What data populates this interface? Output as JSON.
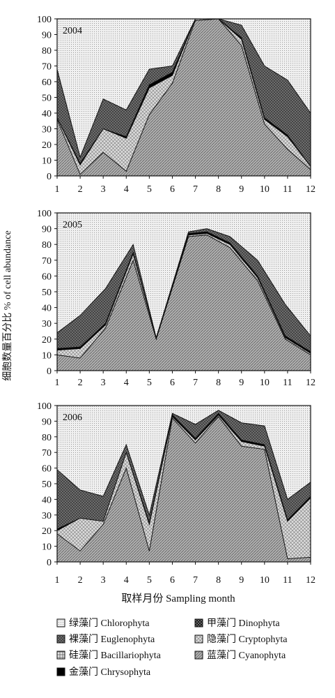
{
  "y_axis_label": "细胞数量百分比  % of cell abundance",
  "x_axis_label": "取样月份 Sampling month",
  "colors": {
    "Chlorophyta": "#ffffff",
    "Cyanophyta": "#b8b8b8",
    "Cryptophyta": "#d0d0d0",
    "Dinophyta": "#2a2a2a",
    "Chrysophyta": "#000000",
    "Bacillariophyta": "#c8c8c8",
    "Euglenophyta": "#4a4a4a"
  },
  "legend": [
    {
      "key": "Chlorophyta",
      "label": "绿藻门 Chlorophyta",
      "pattern": "hatch-chloro"
    },
    {
      "key": "Euglenophyta",
      "label": "裸藻门 Euglenophyta",
      "pattern": "hatch-eugleno"
    },
    {
      "key": "Bacillariophyta",
      "label": "硅藻门 Bacillariophyta",
      "pattern": "hatch-bacill"
    },
    {
      "key": "Chrysophyta",
      "label": "金藻门 Chrysophyta",
      "pattern": "solid-chryso"
    },
    {
      "key": "Dinophyta",
      "label": "甲藻门 Dinophyta",
      "pattern": "hatch-dino"
    },
    {
      "key": "Cryptophyta",
      "label": "隐藻门 Cryptophyta",
      "pattern": "hatch-crypto"
    },
    {
      "key": "Cyanophyta",
      "label": "蓝藻门 Cyanophyta",
      "pattern": "hatch-cyano"
    }
  ],
  "chart_data": [
    {
      "type": "area",
      "panel_label": "2004",
      "xlim": [
        1,
        12
      ],
      "ylim": [
        0,
        100
      ],
      "xticks": [
        "1",
        "2",
        "3",
        "4",
        "5",
        "6",
        "7",
        "8",
        "9",
        "10",
        "11",
        "12"
      ],
      "yticks": [
        "0",
        "10",
        "20",
        "30",
        "40",
        "50",
        "60",
        "70",
        "80",
        "90",
        "100"
      ],
      "x": [
        1,
        2,
        3,
        4,
        5,
        6,
        7,
        8,
        9,
        10,
        11,
        12
      ],
      "series": [
        {
          "name": "Cyanophyta",
          "values": [
            36,
            1,
            15,
            3,
            39,
            59,
            99,
            100,
            83,
            33,
            17,
            4
          ]
        },
        {
          "name": "Cryptophyta",
          "values": [
            1,
            6,
            15,
            21,
            17,
            5,
            1,
            1,
            4,
            3,
            8,
            2
          ]
        },
        {
          "name": "Chrysophyta",
          "values": [
            0,
            1,
            0,
            1,
            2,
            2,
            0,
            0,
            1,
            1,
            1,
            0
          ]
        },
        {
          "name": "Euglenophyta",
          "values": [
            31,
            4,
            19,
            17,
            10,
            4,
            0,
            0,
            8,
            33,
            35,
            34
          ]
        },
        {
          "name": "Chlorophyta",
          "values": [
            32,
            88,
            51,
            58,
            32,
            30,
            0,
            0,
            4,
            30,
            39,
            60
          ]
        }
      ]
    },
    {
      "type": "area",
      "panel_label": "2005",
      "xlim": [
        1,
        12
      ],
      "ylim": [
        0,
        100
      ],
      "xticks": [
        "1",
        "2",
        "3",
        "4",
        "5",
        "6",
        "7",
        "8",
        "9",
        "10",
        "11",
        "12"
      ],
      "yticks": [
        "0",
        "10",
        "20",
        "30",
        "40",
        "50",
        "60",
        "70",
        "80",
        "90",
        "100"
      ],
      "x": [
        1,
        2,
        3.1,
        4.3,
        5.3,
        6.7,
        7.5,
        8.5,
        9.7,
        10.9,
        12
      ],
      "series": [
        {
          "name": "Cyanophyta",
          "values": [
            10,
            8,
            27,
            70,
            20,
            85,
            86,
            78,
            57,
            20,
            10
          ]
        },
        {
          "name": "Cryptophyta",
          "values": [
            3,
            6,
            2,
            4,
            1,
            1,
            1,
            2,
            2,
            1,
            1
          ]
        },
        {
          "name": "Chrysophyta",
          "values": [
            1,
            1,
            1,
            1,
            0,
            1,
            1,
            1,
            1,
            1,
            1
          ]
        },
        {
          "name": "Euglenophyta",
          "values": [
            10,
            20,
            22,
            5,
            0,
            1,
            2,
            4,
            10,
            20,
            10
          ]
        },
        {
          "name": "Chlorophyta",
          "values": [
            76,
            65,
            48,
            20,
            79,
            12,
            10,
            15,
            30,
            58,
            78
          ]
        }
      ]
    },
    {
      "type": "area",
      "panel_label": "2006",
      "xlim": [
        1,
        12
      ],
      "ylim": [
        0,
        100
      ],
      "xticks": [
        "1",
        "2",
        "3",
        "4",
        "5",
        "6",
        "7",
        "8",
        "9",
        "10",
        "11",
        "12"
      ],
      "yticks": [
        "0",
        "10",
        "20",
        "30",
        "40",
        "50",
        "60",
        "70",
        "80",
        "90",
        "100"
      ],
      "x": [
        1,
        2,
        3,
        4,
        5,
        6,
        7,
        8,
        9,
        10,
        11,
        12
      ],
      "series": [
        {
          "name": "Cyanophyta",
          "values": [
            18,
            7,
            24,
            60,
            7,
            92,
            76,
            93,
            74,
            72,
            2,
            3
          ]
        },
        {
          "name": "Cryptophyta",
          "values": [
            2,
            21,
            2,
            10,
            17,
            1,
            2,
            1,
            3,
            2,
            24,
            38
          ]
        },
        {
          "name": "Chrysophyta",
          "values": [
            1,
            0,
            0,
            0,
            1,
            1,
            1,
            1,
            1,
            1,
            1,
            1
          ]
        },
        {
          "name": "Euglenophyta",
          "values": [
            38,
            18,
            16,
            5,
            5,
            1,
            9,
            2,
            11,
            12,
            13,
            9
          ]
        },
        {
          "name": "Chlorophyta",
          "values": [
            41,
            54,
            58,
            25,
            70,
            5,
            12,
            3,
            11,
            13,
            60,
            49
          ]
        }
      ]
    }
  ]
}
